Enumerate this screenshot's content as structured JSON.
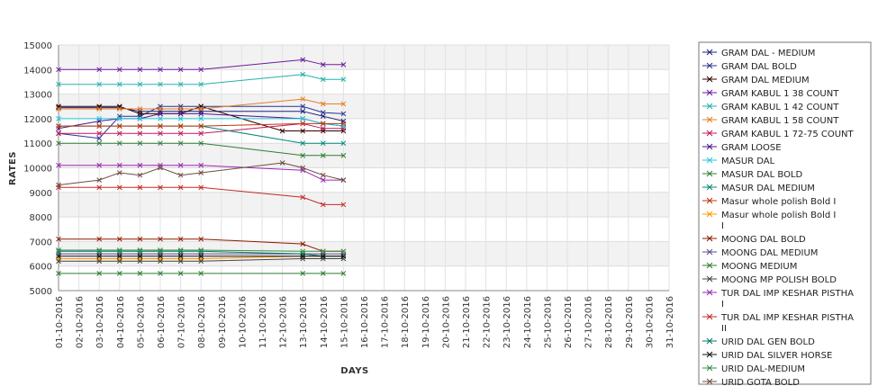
{
  "chart_data": {
    "type": "line",
    "xlabel": "DAYS",
    "ylabel": "RATES",
    "ylim": [
      5000,
      15000
    ],
    "yticks": [
      5000,
      6000,
      7000,
      8000,
      9000,
      10000,
      11000,
      12000,
      13000,
      14000,
      15000
    ],
    "x": [
      "01-10-2016",
      "02-10-2016",
      "03-10-2016",
      "04-10-2016",
      "05-10-2016",
      "06-10-2016",
      "07-10-2016",
      "08-10-2016",
      "09-10-2016",
      "10-10-2016",
      "11-10-2016",
      "12-10-2016",
      "13-10-2016",
      "14-10-2016",
      "15-10-2016",
      "16-10-2016",
      "17-10-2016",
      "18-10-2016",
      "19-10-2016",
      "20-10-2016",
      "21-10-2016",
      "22-10-2016",
      "23-10-2016",
      "24-10-2016",
      "25-10-2016",
      "26-10-2016",
      "27-10-2016",
      "28-10-2016",
      "29-10-2016",
      "30-10-2016",
      "31-10-2016"
    ],
    "grid": true,
    "legend_position": "right",
    "series": [
      {
        "name": "GRAM DAL - MEDIUM",
        "color": "#1a237e",
        "points": [
          [
            "01-10-2016",
            12450
          ],
          [
            "03-10-2016",
            12450
          ],
          [
            "04-10-2016",
            12450
          ],
          [
            "05-10-2016",
            12300
          ],
          [
            "06-10-2016",
            12300
          ],
          [
            "07-10-2016",
            12300
          ],
          [
            "08-10-2016",
            12300
          ],
          [
            "13-10-2016",
            12300
          ],
          [
            "14-10-2016",
            12100
          ],
          [
            "15-10-2016",
            11900
          ]
        ]
      },
      {
        "name": "GRAM DAL BOLD",
        "color": "#283593",
        "points": [
          [
            "01-10-2016",
            11400
          ],
          [
            "03-10-2016",
            11200
          ],
          [
            "04-10-2016",
            12100
          ],
          [
            "05-10-2016",
            12100
          ],
          [
            "06-10-2016",
            12500
          ],
          [
            "07-10-2016",
            12500
          ],
          [
            "08-10-2016",
            12500
          ],
          [
            "13-10-2016",
            12500
          ],
          [
            "14-10-2016",
            12250
          ],
          [
            "15-10-2016",
            12200
          ]
        ]
      },
      {
        "name": "GRAM DAL MEDIUM",
        "color": "#330000",
        "points": [
          [
            "01-10-2016",
            12500
          ],
          [
            "03-10-2016",
            12500
          ],
          [
            "04-10-2016",
            12500
          ],
          [
            "05-10-2016",
            12200
          ],
          [
            "06-10-2016",
            12200
          ],
          [
            "07-10-2016",
            12200
          ],
          [
            "08-10-2016",
            12500
          ],
          [
            "12-10-2016",
            11500
          ],
          [
            "13-10-2016",
            11500
          ],
          [
            "14-10-2016",
            11500
          ],
          [
            "15-10-2016",
            11500
          ]
        ]
      },
      {
        "name": "GRAM KABUL 1 38 COUNT",
        "color": "#6a1b9a",
        "points": [
          [
            "01-10-2016",
            14000
          ],
          [
            "03-10-2016",
            14000
          ],
          [
            "04-10-2016",
            14000
          ],
          [
            "05-10-2016",
            14000
          ],
          [
            "06-10-2016",
            14000
          ],
          [
            "07-10-2016",
            14000
          ],
          [
            "08-10-2016",
            14000
          ],
          [
            "13-10-2016",
            14400
          ],
          [
            "14-10-2016",
            14200
          ],
          [
            "15-10-2016",
            14200
          ]
        ]
      },
      {
        "name": "GRAM KABUL 1 42 COUNT",
        "color": "#20b2aa",
        "points": [
          [
            "01-10-2016",
            13400
          ],
          [
            "03-10-2016",
            13400
          ],
          [
            "04-10-2016",
            13400
          ],
          [
            "05-10-2016",
            13400
          ],
          [
            "06-10-2016",
            13400
          ],
          [
            "07-10-2016",
            13400
          ],
          [
            "08-10-2016",
            13400
          ],
          [
            "13-10-2016",
            13800
          ],
          [
            "14-10-2016",
            13600
          ],
          [
            "15-10-2016",
            13600
          ]
        ]
      },
      {
        "name": "GRAM KABUL 1 58 COUNT",
        "color": "#e67e22",
        "points": [
          [
            "01-10-2016",
            12400
          ],
          [
            "03-10-2016",
            12400
          ],
          [
            "04-10-2016",
            12400
          ],
          [
            "05-10-2016",
            12400
          ],
          [
            "06-10-2016",
            12400
          ],
          [
            "07-10-2016",
            12400
          ],
          [
            "08-10-2016",
            12400
          ],
          [
            "13-10-2016",
            12800
          ],
          [
            "14-10-2016",
            12600
          ],
          [
            "15-10-2016",
            12600
          ]
        ]
      },
      {
        "name": "GRAM KABUL 1 72-75 COUNT",
        "color": "#c2185b",
        "points": [
          [
            "01-10-2016",
            11400
          ],
          [
            "03-10-2016",
            11400
          ],
          [
            "04-10-2016",
            11400
          ],
          [
            "05-10-2016",
            11400
          ],
          [
            "06-10-2016",
            11400
          ],
          [
            "07-10-2016",
            11400
          ],
          [
            "08-10-2016",
            11400
          ],
          [
            "13-10-2016",
            11800
          ],
          [
            "14-10-2016",
            11600
          ],
          [
            "15-10-2016",
            11600
          ]
        ]
      },
      {
        "name": "GRAM LOOSE",
        "color": "#4a148c",
        "points": [
          [
            "01-10-2016",
            11600
          ],
          [
            "03-10-2016",
            11900
          ],
          [
            "04-10-2016",
            12000
          ],
          [
            "05-10-2016",
            12000
          ],
          [
            "06-10-2016",
            12200
          ],
          [
            "07-10-2016",
            12200
          ],
          [
            "08-10-2016",
            12200
          ],
          [
            "13-10-2016",
            12000
          ],
          [
            "14-10-2016",
            11800
          ],
          [
            "15-10-2016",
            11700
          ]
        ]
      },
      {
        "name": "MASUR DAL",
        "color": "#26c6da",
        "points": [
          [
            "01-10-2016",
            12000
          ],
          [
            "03-10-2016",
            12000
          ],
          [
            "04-10-2016",
            12000
          ],
          [
            "05-10-2016",
            12000
          ],
          [
            "06-10-2016",
            12000
          ],
          [
            "07-10-2016",
            12000
          ],
          [
            "08-10-2016",
            12000
          ],
          [
            "13-10-2016",
            12000
          ],
          [
            "14-10-2016",
            11800
          ],
          [
            "15-10-2016",
            11700
          ]
        ]
      },
      {
        "name": "MASUR DAL BOLD",
        "color": "#2e7d32",
        "points": [
          [
            "01-10-2016",
            11000
          ],
          [
            "03-10-2016",
            11000
          ],
          [
            "04-10-2016",
            11000
          ],
          [
            "05-10-2016",
            11000
          ],
          [
            "06-10-2016",
            11000
          ],
          [
            "07-10-2016",
            11000
          ],
          [
            "08-10-2016",
            11000
          ],
          [
            "13-10-2016",
            10500
          ],
          [
            "14-10-2016",
            10500
          ],
          [
            "15-10-2016",
            10500
          ]
        ]
      },
      {
        "name": "MASUR DAL MEDIUM",
        "color": "#00897b",
        "points": [
          [
            "01-10-2016",
            11700
          ],
          [
            "03-10-2016",
            11700
          ],
          [
            "04-10-2016",
            11700
          ],
          [
            "05-10-2016",
            11700
          ],
          [
            "06-10-2016",
            11700
          ],
          [
            "07-10-2016",
            11700
          ],
          [
            "08-10-2016",
            11700
          ],
          [
            "13-10-2016",
            11000
          ],
          [
            "14-10-2016",
            11000
          ],
          [
            "15-10-2016",
            11000
          ]
        ]
      },
      {
        "name": "Masur whole polish Bold I",
        "color": "#bf360c",
        "points": [
          [
            "01-10-2016",
            11700
          ],
          [
            "03-10-2016",
            11700
          ],
          [
            "04-10-2016",
            11700
          ],
          [
            "05-10-2016",
            11700
          ],
          [
            "06-10-2016",
            11700
          ],
          [
            "07-10-2016",
            11700
          ],
          [
            "08-10-2016",
            11700
          ],
          [
            "13-10-2016",
            11800
          ],
          [
            "14-10-2016",
            11800
          ],
          [
            "15-10-2016",
            11800
          ]
        ]
      },
      {
        "name": "Masur whole polish Bold I\nI",
        "color": "#ff9800",
        "points": [
          [
            "01-10-2016",
            6300
          ],
          [
            "03-10-2016",
            6300
          ],
          [
            "04-10-2016",
            6300
          ],
          [
            "05-10-2016",
            6300
          ],
          [
            "06-10-2016",
            6300
          ],
          [
            "07-10-2016",
            6300
          ],
          [
            "08-10-2016",
            6300
          ],
          [
            "13-10-2016",
            6400
          ],
          [
            "14-10-2016",
            6400
          ],
          [
            "15-10-2016",
            6400
          ]
        ]
      },
      {
        "name": "MOONG DAL BOLD",
        "color": "#8b1a00",
        "points": [
          [
            "01-10-2016",
            7100
          ],
          [
            "03-10-2016",
            7100
          ],
          [
            "04-10-2016",
            7100
          ],
          [
            "05-10-2016",
            7100
          ],
          [
            "06-10-2016",
            7100
          ],
          [
            "07-10-2016",
            7100
          ],
          [
            "08-10-2016",
            7100
          ],
          [
            "13-10-2016",
            6900
          ],
          [
            "14-10-2016",
            6600
          ],
          [
            "15-10-2016",
            6600
          ]
        ]
      },
      {
        "name": "MOONG DAL MEDIUM",
        "color": "#5c4b8b",
        "points": [
          [
            "01-10-2016",
            6500
          ],
          [
            "03-10-2016",
            6500
          ],
          [
            "04-10-2016",
            6500
          ],
          [
            "05-10-2016",
            6500
          ],
          [
            "06-10-2016",
            6500
          ],
          [
            "07-10-2016",
            6500
          ],
          [
            "08-10-2016",
            6500
          ],
          [
            "13-10-2016",
            6500
          ],
          [
            "14-10-2016",
            6500
          ],
          [
            "15-10-2016",
            6500
          ]
        ]
      },
      {
        "name": "MOONG MEDIUM",
        "color": "#2e7d32",
        "points": [
          [
            "01-10-2016",
            5700
          ],
          [
            "03-10-2016",
            5700
          ],
          [
            "04-10-2016",
            5700
          ],
          [
            "05-10-2016",
            5700
          ],
          [
            "06-10-2016",
            5700
          ],
          [
            "07-10-2016",
            5700
          ],
          [
            "08-10-2016",
            5700
          ],
          [
            "13-10-2016",
            5700
          ],
          [
            "14-10-2016",
            5700
          ],
          [
            "15-10-2016",
            5700
          ]
        ]
      },
      {
        "name": "MOONG MP POLISH BOLD",
        "color": "#444444",
        "points": [
          [
            "01-10-2016",
            6200
          ],
          [
            "03-10-2016",
            6200
          ],
          [
            "04-10-2016",
            6200
          ],
          [
            "05-10-2016",
            6200
          ],
          [
            "06-10-2016",
            6200
          ],
          [
            "07-10-2016",
            6200
          ],
          [
            "08-10-2016",
            6200
          ],
          [
            "13-10-2016",
            6300
          ],
          [
            "14-10-2016",
            6300
          ],
          [
            "15-10-2016",
            6300
          ]
        ]
      },
      {
        "name": "TUR DAL IMP KESHAR PISTHA\n I",
        "color": "#9c27b0",
        "points": [
          [
            "01-10-2016",
            10100
          ],
          [
            "03-10-2016",
            10100
          ],
          [
            "04-10-2016",
            10100
          ],
          [
            "05-10-2016",
            10100
          ],
          [
            "06-10-2016",
            10100
          ],
          [
            "07-10-2016",
            10100
          ],
          [
            "08-10-2016",
            10100
          ],
          [
            "13-10-2016",
            9900
          ],
          [
            "14-10-2016",
            9500
          ],
          [
            "15-10-2016",
            9500
          ]
        ]
      },
      {
        "name": "TUR DAL IMP KESHAR PISTHA\n II",
        "color": "#c62828",
        "points": [
          [
            "01-10-2016",
            9200
          ],
          [
            "03-10-2016",
            9200
          ],
          [
            "04-10-2016",
            9200
          ],
          [
            "05-10-2016",
            9200
          ],
          [
            "06-10-2016",
            9200
          ],
          [
            "07-10-2016",
            9200
          ],
          [
            "08-10-2016",
            9200
          ],
          [
            "13-10-2016",
            8800
          ],
          [
            "14-10-2016",
            8500
          ],
          [
            "15-10-2016",
            8500
          ]
        ]
      },
      {
        "name": "URID DAL GEN BOLD",
        "color": "#00796b",
        "points": [
          [
            "01-10-2016",
            6600
          ],
          [
            "03-10-2016",
            6600
          ],
          [
            "04-10-2016",
            6600
          ],
          [
            "05-10-2016",
            6600
          ],
          [
            "06-10-2016",
            6600
          ],
          [
            "07-10-2016",
            6600
          ],
          [
            "08-10-2016",
            6600
          ],
          [
            "13-10-2016",
            6500
          ],
          [
            "14-10-2016",
            6400
          ],
          [
            "15-10-2016",
            6400
          ]
        ]
      },
      {
        "name": "URID DAL SILVER HORSE",
        "color": "#111111",
        "points": [
          [
            "01-10-2016",
            6400
          ],
          [
            "03-10-2016",
            6400
          ],
          [
            "04-10-2016",
            6400
          ],
          [
            "05-10-2016",
            6400
          ],
          [
            "06-10-2016",
            6400
          ],
          [
            "07-10-2016",
            6400
          ],
          [
            "08-10-2016",
            6400
          ],
          [
            "13-10-2016",
            6400
          ],
          [
            "14-10-2016",
            6400
          ],
          [
            "15-10-2016",
            6400
          ]
        ]
      },
      {
        "name": "URID DAL-MEDIUM",
        "color": "#388e3c",
        "points": [
          [
            "01-10-2016",
            6650
          ],
          [
            "03-10-2016",
            6650
          ],
          [
            "04-10-2016",
            6650
          ],
          [
            "05-10-2016",
            6650
          ],
          [
            "06-10-2016",
            6650
          ],
          [
            "07-10-2016",
            6650
          ],
          [
            "08-10-2016",
            6650
          ],
          [
            "13-10-2016",
            6600
          ],
          [
            "14-10-2016",
            6600
          ],
          [
            "15-10-2016",
            6600
          ]
        ]
      },
      {
        "name": "URID GOTA BOLD",
        "color": "#6d4c41",
        "points": [
          [
            "01-10-2016",
            9300
          ],
          [
            "03-10-2016",
            9500
          ],
          [
            "04-10-2016",
            9800
          ],
          [
            "05-10-2016",
            9700
          ],
          [
            "06-10-2016",
            10000
          ],
          [
            "07-10-2016",
            9700
          ],
          [
            "08-10-2016",
            9800
          ],
          [
            "12-10-2016",
            10200
          ],
          [
            "13-10-2016",
            10000
          ],
          [
            "14-10-2016",
            9700
          ],
          [
            "15-10-2016",
            9500
          ]
        ]
      }
    ]
  }
}
